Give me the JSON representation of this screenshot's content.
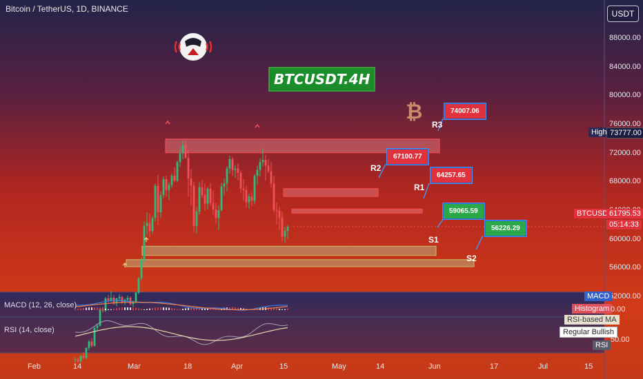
{
  "header": {
    "title": "Bitcoin / TetherUS, 1D, BINANCE",
    "currency_button": "USDT"
  },
  "badge": {
    "text": "BTCUSDT.4H"
  },
  "price_axis": {
    "ticks": [
      "88000.00",
      "84000.00",
      "80000.00",
      "76000.00",
      "72000.00",
      "68000.00",
      "64000.00",
      "60000.00",
      "56000.00",
      "52000.00"
    ]
  },
  "time_axis": {
    "ticks": [
      "Feb",
      "14",
      "Mar",
      "18",
      "Apr",
      "15",
      "May",
      "14",
      "Jun",
      "17",
      "Jul",
      "15"
    ]
  },
  "markers": {
    "high_label": "High",
    "high_value": "73777.00",
    "symbol_label": "BTCUSDT",
    "last_price": "61795.53",
    "countdown": "05:14:33"
  },
  "levels": {
    "r3": {
      "label": "R3",
      "value": "74007.06"
    },
    "r2": {
      "label": "R2",
      "value": "67100.77"
    },
    "r1": {
      "label": "R1",
      "value": "64257.65"
    },
    "s1": {
      "label": "S1",
      "value": "59065.59"
    },
    "s2": {
      "label": "S2",
      "value": "56226.29"
    }
  },
  "macd": {
    "title": "MACD (12, 26, close)",
    "macd_pill": "MACD",
    "histogram_pill": "Histogram",
    "value": "0.00"
  },
  "rsi": {
    "title": "RSI (14, close)",
    "rsi_ma_pill": "RSI-based MA",
    "regular_bullish_pill": "Regular Bullish",
    "rsi_pill": "RSI",
    "value": "50.00"
  },
  "colors": {
    "bull": "#2dbd7a",
    "bear": "#f0515a",
    "zone_red_fill": "#e8868a",
    "zone_green_fill": "#b8c890"
  },
  "chart_data": {
    "type": "candlestick",
    "title": "Bitcoin / TetherUS, 1D, BINANCE",
    "ylim": [
      50000,
      90000
    ],
    "x_ticks": [
      "Feb",
      "14",
      "Mar",
      "18",
      "Apr",
      "15",
      "May",
      "14",
      "Jun",
      "17",
      "Jul",
      "15"
    ],
    "candles_ohlc": [
      [
        43200,
        43600,
        42900,
        43300
      ],
      [
        43300,
        43500,
        42800,
        43000
      ],
      [
        43000,
        43900,
        42900,
        43800
      ],
      [
        43800,
        44300,
        43400,
        43500
      ],
      [
        43500,
        45000,
        43300,
        44900
      ],
      [
        44900,
        46000,
        44600,
        45800
      ],
      [
        45800,
        46200,
        45000,
        45200
      ],
      [
        45200,
        47800,
        45100,
        47700
      ],
      [
        47700,
        48300,
        47300,
        48000
      ],
      [
        48000,
        50400,
        47900,
        50300
      ],
      [
        50300,
        50600,
        49800,
        50100
      ],
      [
        50100,
        52000,
        49900,
        51800
      ],
      [
        51800,
        52300,
        51200,
        51500
      ],
      [
        51500,
        52800,
        51300,
        51900
      ],
      [
        51900,
        52300,
        50900,
        51100
      ],
      [
        51100,
        51900,
        50700,
        51800
      ],
      [
        51800,
        52400,
        51400,
        52000
      ],
      [
        52000,
        52200,
        51100,
        51300
      ],
      [
        51300,
        51800,
        50900,
        51600
      ],
      [
        51600,
        52200,
        51400,
        51900
      ],
      [
        51900,
        52100,
        50800,
        51000
      ],
      [
        51000,
        51500,
        50600,
        51300
      ],
      [
        51300,
        52700,
        51100,
        52600
      ],
      [
        52600,
        54800,
        52400,
        54600
      ],
      [
        54600,
        57500,
        54300,
        57200
      ],
      [
        57200,
        62500,
        56800,
        61900
      ],
      [
        61900,
        63800,
        60700,
        62300
      ],
      [
        62300,
        63600,
        60300,
        61200
      ],
      [
        61200,
        63300,
        60800,
        63000
      ],
      [
        63000,
        67800,
        62500,
        67500
      ],
      [
        67500,
        69000,
        62000,
        63800
      ],
      [
        63800,
        66700,
        63000,
        66200
      ],
      [
        66200,
        68800,
        65800,
        68400
      ],
      [
        68400,
        68900,
        66000,
        66900
      ],
      [
        66900,
        68000,
        65500,
        67600
      ],
      [
        67600,
        69200,
        67200,
        68900
      ],
      [
        68900,
        70100,
        68000,
        68200
      ],
      [
        68200,
        71000,
        68000,
        70800
      ],
      [
        70800,
        72800,
        70100,
        72000
      ],
      [
        72000,
        73777,
        71200,
        73200
      ],
      [
        73200,
        73700,
        71300,
        71400
      ],
      [
        71400,
        72500,
        66000,
        68500
      ],
      [
        68500,
        69800,
        64800,
        67500
      ],
      [
        67500,
        68000,
        61000,
        61900
      ],
      [
        61900,
        64500,
        60800,
        63900
      ],
      [
        63900,
        68000,
        63500,
        67300
      ],
      [
        67300,
        68300,
        65800,
        66200
      ],
      [
        66200,
        67800,
        64000,
        65000
      ],
      [
        65000,
        67300,
        64200,
        67100
      ],
      [
        67100,
        67900,
        64700,
        65100
      ],
      [
        65100,
        66800,
        63500,
        64200
      ],
      [
        64200,
        65100,
        62200,
        63000
      ],
      [
        63000,
        64800,
        61300,
        64100
      ],
      [
        64100,
        67900,
        63900,
        67400
      ],
      [
        67400,
        68500,
        66200,
        67800
      ],
      [
        67800,
        70200,
        66700,
        69900
      ],
      [
        69900,
        71700,
        69200,
        71200
      ],
      [
        71200,
        71500,
        68900,
        69700
      ],
      [
        69700,
        70400,
        68600,
        69900
      ],
      [
        69900,
        70600,
        68300,
        69300
      ],
      [
        69300,
        69600,
        66500,
        67100
      ],
      [
        67100,
        68400,
        65400,
        66900
      ],
      [
        66900,
        67500,
        64400,
        65200
      ],
      [
        65200,
        66400,
        64300,
        66000
      ],
      [
        66000,
        66600,
        64700,
        65400
      ],
      [
        65400,
        69100,
        64900,
        68900
      ],
      [
        68900,
        70300,
        67700,
        69700
      ],
      [
        69700,
        71300,
        68800,
        70800
      ],
      [
        70800,
        72700,
        70200,
        71100
      ],
      [
        71100,
        71800,
        68200,
        70300
      ],
      [
        70300,
        71200,
        69300,
        69500
      ],
      [
        69500,
        70800,
        67200,
        67800
      ],
      [
        67800,
        68900,
        63800,
        64100
      ],
      [
        64100,
        65200,
        62100,
        64000
      ],
      [
        64000,
        64600,
        61300,
        63100
      ],
      [
        63100,
        63900,
        59700,
        60400
      ],
      [
        60400,
        61800,
        59500,
        61200
      ],
      [
        61200,
        62000,
        60100,
        61795
      ]
    ],
    "zones": [
      {
        "name": "R3",
        "type": "resistance",
        "low": 72100,
        "high": 74007.06
      },
      {
        "name": "R2",
        "type": "resistance",
        "low": 66000,
        "high": 67100.77
      },
      {
        "name": "R1",
        "type": "resistance",
        "low": 63800,
        "high": 64257.65
      },
      {
        "name": "S1",
        "type": "support",
        "low": 57800,
        "high": 59065.59
      },
      {
        "name": "S2",
        "type": "support",
        "low": 56226.29,
        "high": 57200
      }
    ],
    "high_marker": 73777.0,
    "last_price": 61795.53
  }
}
